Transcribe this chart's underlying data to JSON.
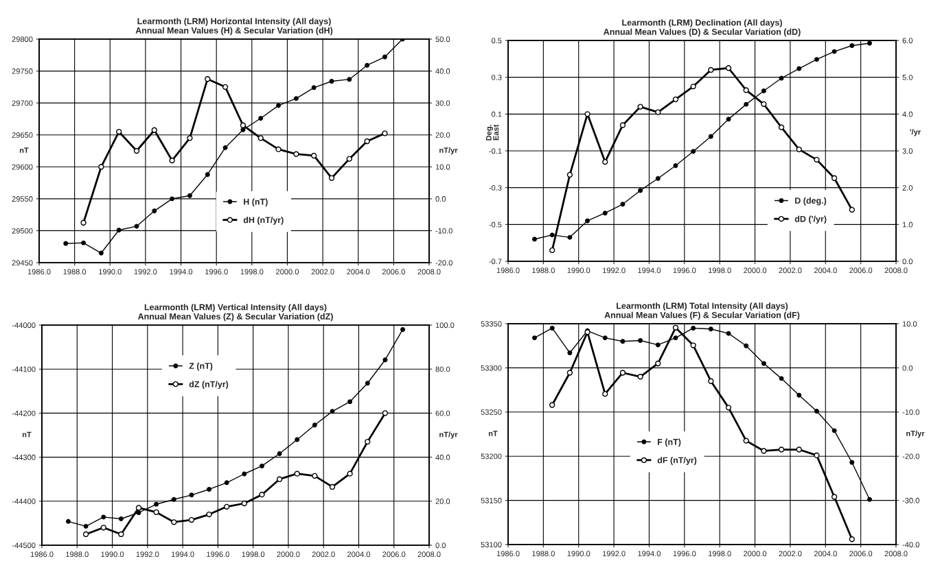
{
  "chart_data": [
    {
      "type": "line",
      "title": "Learmonth (LRM) Horizontal Intensity (All days)\nAnnual Mean Values (H) & Secular Variation (dH)",
      "ylabel": "nT",
      "y2label": "nT/yr",
      "series": [
        {
          "name": "H (nT)",
          "color": "#000000",
          "marker": "circle",
          "x": [
            1987.5,
            1988.5,
            1989.5,
            1990.5,
            1991.5,
            1992.5,
            1993.5,
            1994.5,
            1995.5,
            1996.5,
            1997.5,
            1998.5,
            1999.5,
            2000.5,
            2001.5,
            2002.5,
            2003.5,
            2004.5,
            2005.5,
            2006.5
          ],
          "values": [
            29480,
            29481,
            29465,
            29501,
            29507,
            29531,
            29550,
            29555,
            29588,
            29630,
            29658,
            29676,
            29696,
            29707,
            29724,
            29734,
            29737,
            29759,
            29772,
            29800
          ]
        },
        {
          "name": "dH (nT/yr)",
          "color": "#000000",
          "marker": "circle",
          "axis": "y2",
          "x": [
            1988.5,
            1989.5,
            1990.5,
            1991.5,
            1992.5,
            1993.5,
            1994.5,
            1995.5,
            1996.5,
            1997.5,
            1998.5,
            1999.5,
            2000.5,
            2001.5,
            2002.5,
            2003.5,
            2004.5,
            2005.5
          ],
          "values": [
            -7.5,
            10,
            21,
            15,
            21.5,
            12,
            19,
            37.5,
            35,
            23,
            19,
            15.5,
            14,
            13.5,
            6.5,
            12.5,
            18,
            20.5
          ]
        }
      ],
      "xlim": [
        1986,
        2008
      ],
      "xticks": [
        {
          "value": 1986,
          "label": "1986.0"
        },
        {
          "value": 1988,
          "label": "1988.0"
        },
        {
          "value": 1990,
          "label": "1990.0"
        },
        {
          "value": 1992,
          "label": "1992.0"
        },
        {
          "value": 1994,
          "label": "1994.0"
        },
        {
          "value": 1996,
          "label": "1996.0"
        },
        {
          "value": 1998,
          "label": "1998.0"
        },
        {
          "value": 2000,
          "label": "2000.0"
        },
        {
          "value": 2002,
          "label": "2002.0"
        },
        {
          "value": 2004,
          "label": "2004.0"
        },
        {
          "value": 2006,
          "label": "2006.0"
        },
        {
          "value": 2008,
          "label": "2008.0"
        }
      ],
      "ylim": [
        29450,
        29800
      ],
      "yticks": [
        29450,
        29500,
        29550,
        29600,
        29650,
        29700,
        29750,
        29800
      ],
      "y2lim": [
        -20,
        50
      ],
      "y2ticks": [
        {
          "value": -20,
          "label": "-20.0"
        },
        {
          "value": -10,
          "label": "-10.0"
        },
        {
          "value": 0,
          "label": "0.0"
        },
        {
          "value": 10,
          "label": "10.0"
        },
        {
          "value": 20,
          "label": "20.0"
        },
        {
          "value": 30,
          "label": "30.0"
        },
        {
          "value": 40,
          "label": "40.0"
        },
        {
          "value": 50,
          "label": "50.0"
        }
      ],
      "grid": true,
      "legend": "bottom"
    },
    {
      "type": "line",
      "title": "Learmonth (LRM) Declination (All days)\nAnnual Mean Values (D) & Secular Variation (dD)",
      "ylabel": "Deg.\nEast",
      "y2label": "'/yr",
      "series": [
        {
          "name": "D (deg.)",
          "color": "#000000",
          "marker": "circle",
          "x": [
            1987.5,
            1988.5,
            1989.5,
            1990.5,
            1991.5,
            1992.5,
            1993.5,
            1994.5,
            1995.5,
            1996.5,
            1997.5,
            1998.5,
            1999.5,
            2000.5,
            2001.5,
            2002.5,
            2003.5,
            2004.5,
            2005.5,
            2006.5
          ],
          "values": [
            -0.58,
            -0.557,
            -0.57,
            -0.48,
            -0.438,
            -0.39,
            -0.315,
            -0.25,
            -0.18,
            -0.103,
            -0.022,
            0.072,
            0.153,
            0.226,
            0.295,
            0.347,
            0.397,
            0.44,
            0.472,
            0.485
          ]
        },
        {
          "name": "dD ('/yr)",
          "color": "#000000",
          "marker": "circle",
          "axis": "y2",
          "x": [
            1988.5,
            1989.5,
            1990.5,
            1991.5,
            1992.5,
            1993.5,
            1994.5,
            1995.5,
            1996.5,
            1997.5,
            1998.5,
            1999.5,
            2000.5,
            2001.5,
            2002.5,
            2003.5,
            2004.5,
            2005.5
          ],
          "values": [
            0.3,
            2.35,
            4.0,
            2.7,
            3.7,
            4.2,
            4.05,
            4.4,
            4.75,
            5.2,
            5.25,
            4.65,
            4.27,
            3.64,
            3.04,
            2.76,
            2.26,
            1.4
          ]
        }
      ],
      "xlim": [
        1986,
        2008
      ],
      "xticks": [
        {
          "value": 1986,
          "label": "1986.0"
        },
        {
          "value": 1988,
          "label": "1988.0"
        },
        {
          "value": 1990,
          "label": "1990.0"
        },
        {
          "value": 1992,
          "label": "1992.0"
        },
        {
          "value": 1994,
          "label": "1994.0"
        },
        {
          "value": 1996,
          "label": "1996.0"
        },
        {
          "value": 1998,
          "label": "1998.0"
        },
        {
          "value": 2000,
          "label": "2000.0"
        },
        {
          "value": 2002,
          "label": "2002.0"
        },
        {
          "value": 2004,
          "label": "2004.0"
        },
        {
          "value": 2006,
          "label": "2006.0"
        },
        {
          "value": 2008,
          "label": "2008.0"
        }
      ],
      "ylim": [
        -0.7,
        0.5
      ],
      "yticks": [
        -0.7,
        -0.5,
        -0.3,
        -0.1,
        0.1,
        0.3,
        0.5
      ],
      "y2lim": [
        0,
        6
      ],
      "y2ticks": [
        {
          "value": 0,
          "label": "0.0"
        },
        {
          "value": 1,
          "label": "1.0"
        },
        {
          "value": 2,
          "label": "2.0"
        },
        {
          "value": 3,
          "label": "3.0"
        },
        {
          "value": 4,
          "label": "4.0"
        },
        {
          "value": 5,
          "label": "5.0"
        },
        {
          "value": 6,
          "label": "6.0"
        }
      ],
      "grid": true,
      "legend": "bottom right"
    },
    {
      "type": "line",
      "title": "Learmonth (LRM) Vertical Intensity (All days)\nAnnual Mean Values (Z) & Secular Variation (dZ)",
      "ylabel": "nT",
      "y2label": "nT/yr",
      "series": [
        {
          "name": "Z (nT)",
          "color": "#000000",
          "marker": "circle",
          "x": [
            1987.5,
            1988.5,
            1989.5,
            1990.5,
            1991.5,
            1992.5,
            1993.5,
            1994.5,
            1995.5,
            1996.5,
            1997.5,
            1998.5,
            1999.5,
            2000.5,
            2001.5,
            2002.5,
            2003.5,
            2004.5,
            2005.5,
            2006.5
          ],
          "values": [
            -44446,
            -44457,
            -44436,
            -44440,
            -44426,
            -44407,
            -44396,
            -44386,
            -44373,
            -44358,
            -44338,
            -44320,
            -44292,
            -44260,
            -44227,
            -44196,
            -44174,
            -44132,
            -44079,
            -44010
          ]
        },
        {
          "name": "dZ (nT/yr)",
          "color": "#000000",
          "marker": "circle",
          "axis": "y2",
          "x": [
            1988.5,
            1989.5,
            1990.5,
            1991.5,
            1992.5,
            1993.5,
            1994.5,
            1995.5,
            1996.5,
            1997.5,
            1998.5,
            1999.5,
            2000.5,
            2001.5,
            2002.5,
            2003.5,
            2004.5,
            2005.5
          ],
          "values": [
            5,
            8,
            5,
            17,
            15,
            10.5,
            11.5,
            14,
            17.5,
            19,
            23,
            30,
            32.5,
            31.5,
            26.5,
            32.5,
            47,
            60
          ]
        }
      ],
      "xlim": [
        1986,
        2008
      ],
      "xticks": [
        {
          "value": 1986,
          "label": "1986.0"
        },
        {
          "value": 1988,
          "label": "1988.0"
        },
        {
          "value": 1990,
          "label": "1990.0"
        },
        {
          "value": 1992,
          "label": "1992.0"
        },
        {
          "value": 1994,
          "label": "1994.0"
        },
        {
          "value": 1996,
          "label": "1996.0"
        },
        {
          "value": 1998,
          "label": "1998.0"
        },
        {
          "value": 2000,
          "label": "2000.0"
        },
        {
          "value": 2002,
          "label": "2002.0"
        },
        {
          "value": 2004,
          "label": "2004.0"
        },
        {
          "value": 2006,
          "label": "2006.0"
        },
        {
          "value": 2008,
          "label": "2008.0"
        }
      ],
      "ylim": [
        -44500,
        -44000
      ],
      "yticks": [
        -44500,
        -44400,
        -44300,
        -44200,
        -44100,
        -44000
      ],
      "y2lim": [
        0,
        100
      ],
      "y2ticks": [
        {
          "value": 0,
          "label": "0.0"
        },
        {
          "value": 20,
          "label": "20.0"
        },
        {
          "value": 40,
          "label": "40.0"
        },
        {
          "value": 60,
          "label": "60.0"
        },
        {
          "value": 80,
          "label": "80.0"
        },
        {
          "value": 100,
          "label": "100.0"
        }
      ],
      "grid": true,
      "legend": "top left"
    },
    {
      "type": "line",
      "title": "Learmonth (LRM) Total Intensity (All days)\nAnnual Mean Values (F) & Secular Variation (dF)",
      "ylabel": "nT",
      "y2label": "nT/yr",
      "series": [
        {
          "name": "F (nT)",
          "color": "#000000",
          "marker": "circle",
          "x": [
            1987.5,
            1988.5,
            1989.5,
            1990.5,
            1991.5,
            1992.5,
            1993.5,
            1994.5,
            1995.5,
            1996.5,
            1997.5,
            1998.5,
            1999.5,
            2000.5,
            2001.5,
            2002.5,
            2003.5,
            2004.5,
            2005.5,
            2006.5
          ],
          "values": [
            53334,
            53345,
            53317,
            53342,
            53334,
            53330,
            53331,
            53326,
            53334,
            53345,
            53344,
            53339,
            53325,
            53305,
            53288,
            53269,
            53251,
            53229,
            53193,
            53151
          ]
        },
        {
          "name": "dF (nT/yr)",
          "color": "#000000",
          "marker": "circle",
          "axis": "y2",
          "x": [
            1988.5,
            1989.5,
            1990.5,
            1991.5,
            1992.5,
            1993.5,
            1994.5,
            1995.5,
            1996.5,
            1997.5,
            1998.5,
            1999.5,
            2000.5,
            2001.5,
            2002.5,
            2003.5,
            2004.5,
            2005.5
          ],
          "values": [
            -8.4,
            -1.1,
            8.1,
            -5.9,
            -1.1,
            -2.0,
            1.0,
            9.1,
            5.1,
            -3.0,
            -9.0,
            -16.5,
            -18.8,
            -18.5,
            -18.5,
            -19.8,
            -29.2,
            -38.8
          ]
        }
      ],
      "xlim": [
        1986,
        2008
      ],
      "xticks": [
        {
          "value": 1986,
          "label": "1986.0"
        },
        {
          "value": 1988,
          "label": "1988.0"
        },
        {
          "value": 1990,
          "label": "1990.0"
        },
        {
          "value": 1992,
          "label": "1992.0"
        },
        {
          "value": 1994,
          "label": "1994.0"
        },
        {
          "value": 1996,
          "label": "1996.0"
        },
        {
          "value": 1998,
          "label": "1998.0"
        },
        {
          "value": 2000,
          "label": "2000.0"
        },
        {
          "value": 2002,
          "label": "2002.0"
        },
        {
          "value": 2004,
          "label": "2004.0"
        },
        {
          "value": 2006,
          "label": "2006.0"
        },
        {
          "value": 2008,
          "label": "2008.0"
        }
      ],
      "ylim": [
        53100,
        53350
      ],
      "yticks": [
        53100,
        53150,
        53200,
        53250,
        53300,
        53350
      ],
      "y2lim": [
        -40,
        10
      ],
      "y2ticks": [
        {
          "value": -40,
          "label": "-40.0"
        },
        {
          "value": -30,
          "label": "-30.0"
        },
        {
          "value": -20,
          "label": "-20.0"
        },
        {
          "value": -10,
          "label": "-10.0"
        },
        {
          "value": 0,
          "label": "0.0"
        },
        {
          "value": 10,
          "label": "10.0"
        }
      ],
      "grid": true,
      "legend": "center"
    }
  ]
}
